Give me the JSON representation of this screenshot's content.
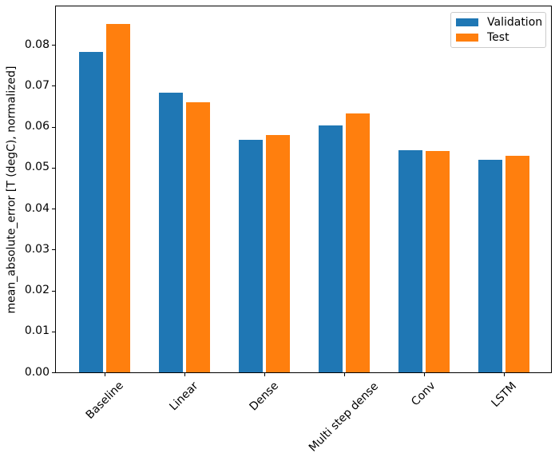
{
  "figure": {
    "background": "#ffffff"
  },
  "chart_data": {
    "type": "bar",
    "title": "",
    "categories": [
      "Baseline",
      "Linear",
      "Dense",
      "Multi step dense",
      "Conv",
      "LSTM"
    ],
    "series": [
      {
        "name": "Validation",
        "color": "#1f77b4",
        "values": [
          0.0783,
          0.0684,
          0.0569,
          0.0603,
          0.0543,
          0.052
        ]
      },
      {
        "name": "Test",
        "color": "#ff7f0e",
        "values": [
          0.0852,
          0.066,
          0.058,
          0.0632,
          0.054,
          0.0529
        ]
      }
    ],
    "xlabel": "",
    "ylabel": "mean_absolute_error [T (degC), normalized]",
    "ylim": [
      0,
      0.0894
    ],
    "yticks": [
      0,
      0.01,
      0.02,
      0.03,
      0.04,
      0.05,
      0.06,
      0.07,
      0.08
    ],
    "ytick_decimals": 2,
    "xtick_rotation_deg": 45,
    "grid": false,
    "legend": {
      "position": "upper right",
      "entries": [
        "Validation",
        "Test"
      ]
    },
    "axis_color": "#000000",
    "tick_color": "#000000"
  }
}
